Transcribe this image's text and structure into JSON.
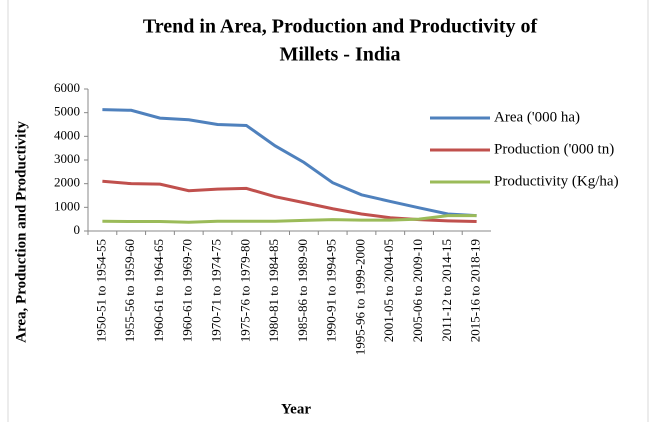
{
  "chart_data": {
    "type": "line",
    "title": [
      "Trend in Area, Production and Productivity of",
      "Millets - India"
    ],
    "x_label": "Year",
    "y_label": "Area, Production and Productivity",
    "categories": [
      "1950-51 to 1954-55",
      "1955-56 to 1959-60",
      "1960-61 to 1964-65",
      "1960-61 to 1969-70",
      "1970-71 to 1974-75",
      "1975-76 to 1979-80",
      "1980-81 to 1984-85",
      "1985-86 to 1989-90",
      "1990-91 to 1994-95",
      "1995-96 to 1999-2000",
      "2001-05 to 2004-05",
      "2005-06 to 2009-10",
      "2011-12 to 2014-15",
      "2015-16 to 2018-19"
    ],
    "series": [
      {
        "name": "Area ('000 ha)",
        "color": "#4f81bd",
        "values": [
          5130,
          5100,
          4770,
          4700,
          4500,
          4460,
          3600,
          2900,
          2040,
          1530,
          1250,
          980,
          720,
          650
        ]
      },
      {
        "name": "Production ('000 tn)",
        "color": "#c0504d",
        "values": [
          2100,
          2000,
          1980,
          1700,
          1770,
          1800,
          1450,
          1200,
          940,
          720,
          560,
          480,
          430,
          400
        ]
      },
      {
        "name": "Productivity (Kg/ha)",
        "color": "#9bbb59",
        "values": [
          410,
          400,
          400,
          370,
          410,
          410,
          410,
          450,
          480,
          460,
          460,
          500,
          650,
          650
        ]
      }
    ],
    "ylim": [
      0,
      6000
    ],
    "yticks": [
      0,
      1000,
      2000,
      3000,
      4000,
      5000,
      6000
    ],
    "grid": false,
    "legend": "right"
  }
}
